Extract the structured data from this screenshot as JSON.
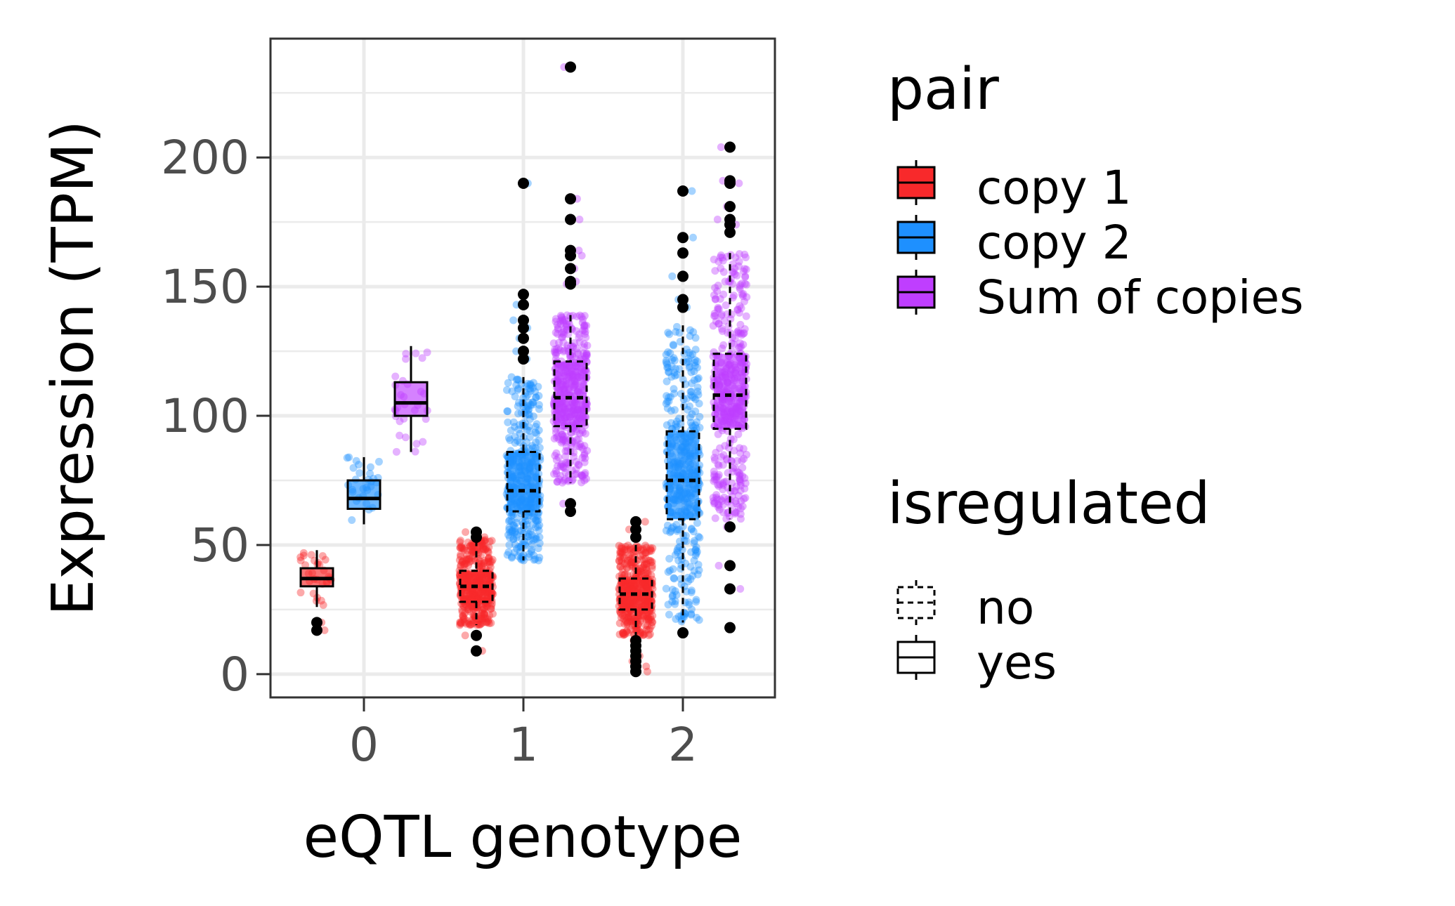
{
  "chart_data": {
    "type": "boxplot",
    "xlabel": "eQTL genotype",
    "ylabel": "Expression (TPM)",
    "categories": [
      "0",
      "1",
      "2"
    ],
    "y_ticks": [
      "0",
      "50",
      "100",
      "150",
      "200"
    ],
    "y_tick_values": [
      0,
      50,
      100,
      150,
      200
    ],
    "ylim": [
      -9,
      246
    ],
    "grid": true,
    "legend_position": "right",
    "legends": [
      {
        "title": "pair",
        "entries": [
          {
            "label": "copy 1",
            "color": "#f8292b"
          },
          {
            "label": "copy 2",
            "color": "#1e90ff"
          },
          {
            "label": "Sum of copies",
            "color": "#bf3eff"
          }
        ]
      },
      {
        "title": "isregulated",
        "entries": [
          {
            "label": "no",
            "linetype": "dashed"
          },
          {
            "label": "yes",
            "linetype": "solid"
          }
        ]
      }
    ],
    "series": [
      {
        "name": "copy 1",
        "color": "#f8292b",
        "boxes": [
          {
            "x": "0",
            "q1": 34,
            "median": 37,
            "q3": 41,
            "whisker_low": 26,
            "whisker_high": 48,
            "outliers": [
              17,
              20
            ],
            "regulated": "yes"
          },
          {
            "x": "1",
            "q1": 28,
            "median": 34,
            "q3": 40,
            "whisker_low": 19,
            "whisker_high": 52,
            "outliers": [
              9,
              15,
              53,
              55
            ],
            "regulated": "no"
          },
          {
            "x": "2",
            "q1": 25,
            "median": 31,
            "q3": 37,
            "whisker_low": 15,
            "whisker_high": 50,
            "outliers": [
              1,
              3,
              5,
              7,
              9,
              11,
              13,
              53,
              56,
              59
            ],
            "regulated": "no"
          }
        ]
      },
      {
        "name": "copy 2",
        "color": "#1e90ff",
        "boxes": [
          {
            "x": "0",
            "q1": 64,
            "median": 68,
            "q3": 75,
            "whisker_low": 58,
            "whisker_high": 84,
            "outliers": [],
            "regulated": "yes"
          },
          {
            "x": "1",
            "q1": 63,
            "median": 71,
            "q3": 86,
            "whisker_low": 44,
            "whisker_high": 115,
            "outliers": [
              122,
              125,
              130,
              134,
              137,
              143,
              147,
              190
            ],
            "regulated": "no"
          },
          {
            "x": "2",
            "q1": 60,
            "median": 75,
            "q3": 94,
            "whisker_low": 20,
            "whisker_high": 135,
            "outliers": [
              16,
              142,
              145,
              154,
              163,
              169,
              187
            ],
            "regulated": "no"
          }
        ]
      },
      {
        "name": "Sum of copies",
        "color": "#bf3eff",
        "boxes": [
          {
            "x": "0",
            "q1": 100,
            "median": 105,
            "q3": 113,
            "whisker_low": 86,
            "whisker_high": 127,
            "outliers": [],
            "regulated": "yes"
          },
          {
            "x": "1",
            "q1": 96,
            "median": 107,
            "q3": 121,
            "whisker_low": 74,
            "whisker_high": 139,
            "outliers": [
              63,
              66,
              151,
              152,
              157,
              162,
              164,
              176,
              184,
              235
            ],
            "regulated": "no"
          },
          {
            "x": "2",
            "q1": 95,
            "median": 108,
            "q3": 124,
            "whisker_low": 60,
            "whisker_high": 163,
            "outliers": [
              18,
              33,
              42,
              57,
              171,
              174,
              176,
              181,
              190,
              191,
              204
            ],
            "regulated": "no"
          }
        ]
      }
    ]
  }
}
